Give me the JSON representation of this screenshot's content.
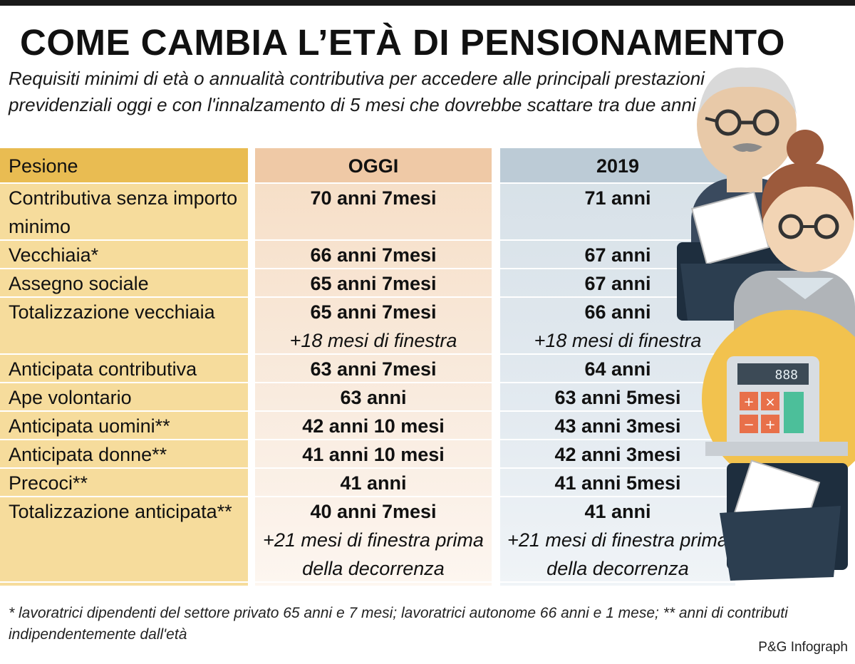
{
  "title": "COME CAMBIA L’ETÀ DI PENSIONAMENTO",
  "subtitle": "Requisiti minimi di età o annualità contributiva per accedere alle principali prestazioni previdenziali oggi e con l'innalzamento di 5 mesi che dovrebbe scattare tra due anni",
  "chart_data": {
    "type": "table",
    "columns": [
      "Pesione",
      "OGGI",
      "2019"
    ],
    "rows": [
      {
        "label": "Contributiva senza importo minimo",
        "oggi": "70 anni 7mesi",
        "y2019": "71 anni"
      },
      {
        "label": "Vecchiaia*",
        "oggi": "66 anni 7mesi",
        "y2019": "67 anni"
      },
      {
        "label": "Assegno sociale",
        "oggi": "65 anni 7mesi",
        "y2019": "67 anni"
      },
      {
        "label": "Totalizzazione vecchiaia",
        "oggi": "65 anni 7mesi",
        "oggi_note": "+18 mesi di finestra",
        "y2019": "66 anni",
        "y2019_note": "+18 mesi di finestra"
      },
      {
        "label": "Anticipata contributiva",
        "oggi": "63 anni 7mesi",
        "y2019": "64 anni"
      },
      {
        "label": "Ape volontario",
        "oggi": "63 anni",
        "y2019": "63 anni 5mesi"
      },
      {
        "label": "Anticipata uomini**",
        "oggi": "42 anni 10 mesi",
        "y2019": "43 anni 3mesi"
      },
      {
        "label": "Anticipata donne**",
        "oggi": "41 anni 10 mesi",
        "y2019": "42 anni 3mesi"
      },
      {
        "label": "Precoci**",
        "oggi": "41 anni",
        "y2019": "41 anni 5mesi"
      },
      {
        "label": "Totalizzazione anticipata**",
        "oggi": "40 anni 7mesi",
        "oggi_note": "+21 mesi di finestra prima della decorrenza",
        "y2019": "41 anni",
        "y2019_note": "+21 mesi di finestra prima della decorrenza"
      }
    ]
  },
  "footnote": "* lavoratrici dipendenti del settore privato 65 anni e 7 mesi; lavoratrici autonome 66 anni e 1 mese; ** anni di contributi indipendentemente dall'età",
  "credit": "P&G Infograph",
  "calculator_display": "888",
  "colors": {
    "label_header": "#e9bc52",
    "label_body": "#f6dc9c",
    "oggi_header": "#efc9a6",
    "y2019_header": "#bccbd6"
  }
}
